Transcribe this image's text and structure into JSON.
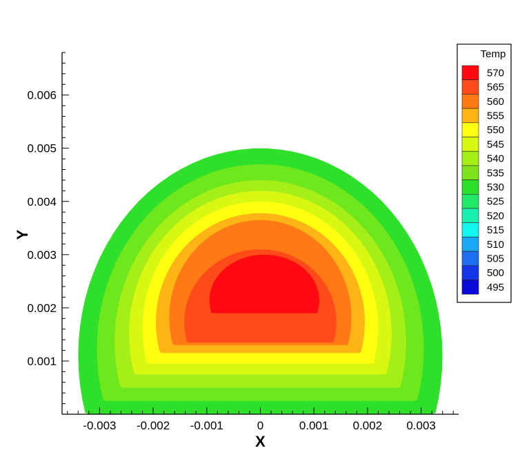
{
  "chart_data": {
    "type": "heatmap",
    "subtype": "filled-contour",
    "title": "",
    "xlabel": "X",
    "ylabel": "Y",
    "xlim": [
      -0.0037,
      0.0037
    ],
    "ylim": [
      0,
      0.0068
    ],
    "x_ticks": [
      -0.003,
      -0.002,
      -0.001,
      0,
      0.001,
      0.002,
      0.003
    ],
    "x_tick_labels": [
      "-0.003",
      "-0.002",
      "-0.001",
      "0",
      "0.001",
      "0.002",
      "0.003"
    ],
    "y_ticks": [
      0.001,
      0.002,
      0.003,
      0.004,
      0.005,
      0.006
    ],
    "y_tick_labels": [
      "0.001",
      "0.002",
      "0.003",
      "0.004",
      "0.005",
      "0.006"
    ],
    "grid": false,
    "legend": {
      "title": "Temp",
      "placement": "right",
      "levels": [
        570,
        565,
        560,
        555,
        550,
        545,
        540,
        535,
        530,
        525,
        520,
        515,
        510,
        505,
        500,
        495
      ],
      "colors": [
        "#ff0a10",
        "#ff4a1a",
        "#ff7a14",
        "#ffb415",
        "#ffff10",
        "#d8f812",
        "#a6ee18",
        "#7ee21c",
        "#2ee02a",
        "#22e86a",
        "#19f0b0",
        "#12f6f0",
        "#1aa8f4",
        "#1e6ef0",
        "#1436e8",
        "#0a0ad8"
      ]
    },
    "domain_shape": "truncated ellipse, flat bottom at y=0",
    "domain_extent": {
      "x": [
        -0.0034,
        0.0034
      ],
      "y": [
        0,
        0.005
      ]
    },
    "contours": [
      {
        "level": 530,
        "color": "#2ee02a",
        "x": [
          -0.0034,
          0.0034
        ],
        "y": [
          0,
          0.005
        ]
      },
      {
        "level": 535,
        "color": "#6ee81c",
        "x": [
          -0.00305,
          0.00305
        ],
        "y": [
          0.00025,
          0.0047
        ]
      },
      {
        "level": 540,
        "color": "#a6ee18",
        "x": [
          -0.00272,
          0.00272
        ],
        "y": [
          0.0005,
          0.0044
        ]
      },
      {
        "level": 545,
        "color": "#d8f812",
        "x": [
          -0.00245,
          0.00245
        ],
        "y": [
          0.00075,
          0.0042
        ]
      },
      {
        "level": 550,
        "color": "#ffff10",
        "x": [
          -0.0022,
          0.0022
        ],
        "y": [
          0.00095,
          0.004
        ]
      },
      {
        "level": 555,
        "color": "#ffb415",
        "x": [
          -0.00195,
          0.00195
        ],
        "y": [
          0.00115,
          0.00378
        ]
      },
      {
        "level": 560,
        "color": "#ff7a14",
        "x": [
          -0.0017,
          0.0017
        ],
        "y": [
          0.0013,
          0.00365
        ]
      },
      {
        "level": 565,
        "color": "#ff4a1a",
        "x": [
          -0.00142,
          0.00142
        ],
        "y": [
          0.00135,
          0.0031
        ]
      },
      {
        "level": 570,
        "color": "#ff0a10",
        "x": [
          -0.00095,
          0.0011
        ],
        "y": [
          0.0019,
          0.003
        ]
      }
    ]
  }
}
